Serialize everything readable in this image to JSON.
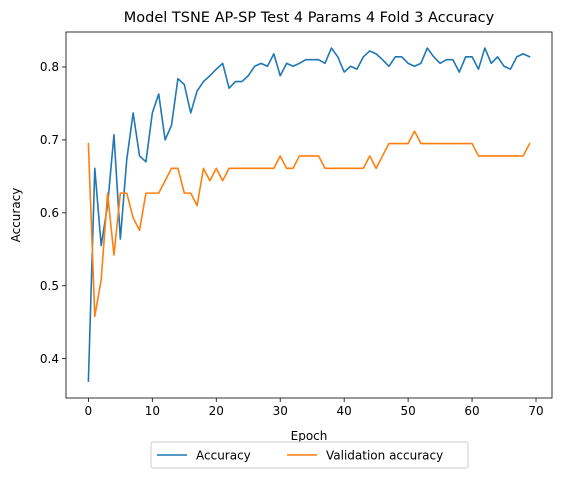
{
  "chart_data": {
    "type": "line",
    "title": "Model TSNE AP-SP Test 4 Params 4 Fold 3 Accuracy",
    "xlabel": "Epoch",
    "ylabel": "Accuracy",
    "xlim": [
      -3.5,
      72.5
    ],
    "ylim": [
      0.346,
      0.848
    ],
    "xticks": [
      0,
      10,
      20,
      30,
      40,
      50,
      60,
      70
    ],
    "yticks": [
      0.4,
      0.5,
      0.6,
      0.7,
      0.8
    ],
    "ytick_labels": [
      "0.4",
      "0.5",
      "0.6",
      "0.7",
      "0.8"
    ],
    "grid": false,
    "legend_position": "below plot, centered, two columns",
    "x": [
      0,
      1,
      2,
      3,
      4,
      5,
      6,
      7,
      8,
      9,
      10,
      11,
      12,
      13,
      14,
      15,
      16,
      17,
      18,
      19,
      20,
      21,
      22,
      23,
      24,
      25,
      26,
      27,
      28,
      29,
      30,
      31,
      32,
      33,
      34,
      35,
      36,
      37,
      38,
      39,
      40,
      41,
      42,
      43,
      44,
      45,
      46,
      47,
      48,
      49,
      50,
      51,
      52,
      53,
      54,
      55,
      56,
      57,
      58,
      59,
      60,
      61,
      62,
      63,
      64,
      65,
      66,
      67,
      68,
      69
    ],
    "series": [
      {
        "name": "Accuracy",
        "color": "#1f77b4",
        "values": [
          0.369,
          0.661,
          0.555,
          0.61,
          0.707,
          0.564,
          0.673,
          0.737,
          0.678,
          0.67,
          0.737,
          0.763,
          0.7,
          0.72,
          0.784,
          0.776,
          0.737,
          0.767,
          0.78,
          0.788,
          0.797,
          0.805,
          0.771,
          0.78,
          0.78,
          0.788,
          0.801,
          0.805,
          0.801,
          0.818,
          0.788,
          0.805,
          0.801,
          0.805,
          0.81,
          0.81,
          0.81,
          0.805,
          0.826,
          0.814,
          0.793,
          0.801,
          0.797,
          0.814,
          0.822,
          0.818,
          0.81,
          0.801,
          0.814,
          0.814,
          0.805,
          0.801,
          0.805,
          0.826,
          0.814,
          0.805,
          0.81,
          0.81,
          0.793,
          0.814,
          0.814,
          0.797,
          0.826,
          0.805,
          0.814,
          0.801,
          0.797,
          0.814,
          0.818,
          0.814
        ]
      },
      {
        "name": "Validation accuracy",
        "color": "#ff7f0e",
        "values": [
          0.695,
          0.458,
          0.508,
          0.627,
          0.542,
          0.627,
          0.627,
          0.593,
          0.576,
          0.627,
          0.627,
          0.627,
          0.644,
          0.661,
          0.661,
          0.627,
          0.627,
          0.61,
          0.661,
          0.644,
          0.661,
          0.644,
          0.661,
          0.661,
          0.661,
          0.661,
          0.661,
          0.661,
          0.661,
          0.661,
          0.678,
          0.661,
          0.661,
          0.678,
          0.678,
          0.678,
          0.678,
          0.661,
          0.661,
          0.661,
          0.661,
          0.661,
          0.661,
          0.661,
          0.678,
          0.661,
          0.678,
          0.695,
          0.695,
          0.695,
          0.695,
          0.712,
          0.695,
          0.695,
          0.695,
          0.695,
          0.695,
          0.695,
          0.695,
          0.695,
          0.695,
          0.678,
          0.678,
          0.678,
          0.678,
          0.678,
          0.678,
          0.678,
          0.678,
          0.695
        ]
      }
    ]
  }
}
